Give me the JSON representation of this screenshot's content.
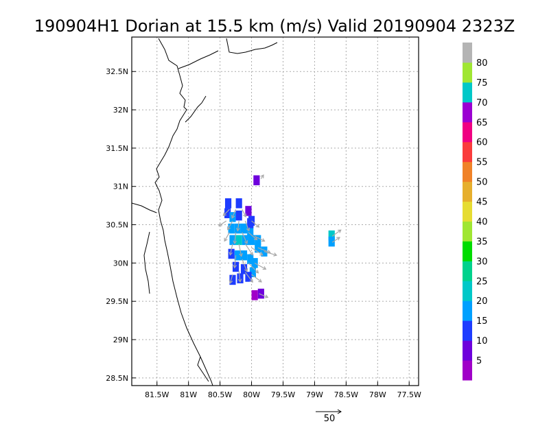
{
  "chart_data": {
    "type": "wind-vector-map",
    "title": "190904H1 Dorian at 15.5 km (m/s) Valid 20190904 2323Z",
    "x_ticks": [
      "81.5W",
      "81W",
      "80.5W",
      "80W",
      "79.5W",
      "79W",
      "78.5W",
      "78W",
      "77.5W"
    ],
    "x_tick_values": [
      -81.5,
      -81.0,
      -80.5,
      -80.0,
      -79.5,
      -79.0,
      -78.5,
      -78.0,
      -77.5
    ],
    "y_ticks": [
      "28.5N",
      "29N",
      "29.5N",
      "30N",
      "30.5N",
      "31N",
      "31.5N",
      "32N",
      "32.5N"
    ],
    "y_tick_values": [
      28.5,
      29.0,
      29.5,
      30.0,
      30.5,
      31.0,
      31.5,
      32.0,
      32.5
    ],
    "xlim": [
      -81.9,
      -77.35
    ],
    "ylim": [
      28.4,
      32.95
    ],
    "grid": true,
    "colorbar": {
      "labels": [
        "5",
        "10",
        "15",
        "20",
        "25",
        "30",
        "35",
        "40",
        "45",
        "50",
        "55",
        "60",
        "65",
        "70",
        "75",
        "80"
      ],
      "colors": [
        "#a000c8",
        "#6e00dc",
        "#1e3cff",
        "#00a0ff",
        "#00c8c8",
        "#00d28c",
        "#00dc00",
        "#a0e632",
        "#e6dc32",
        "#e6af2d",
        "#f08228",
        "#fa3c3c",
        "#f00082",
        "#9b00d2",
        "#00c8c8",
        "#a0e632",
        "#b4b4b4"
      ]
    },
    "reference_vector": {
      "label": "50"
    },
    "wind_cells": [
      {
        "lon": -80.37,
        "lat": 30.78,
        "speed": 15
      },
      {
        "lon": -80.2,
        "lat": 30.78,
        "speed": 15
      },
      {
        "lon": -80.38,
        "lat": 30.65,
        "speed": 15
      },
      {
        "lon": -80.3,
        "lat": 30.6,
        "speed": 20
      },
      {
        "lon": -80.2,
        "lat": 30.62,
        "speed": 15
      },
      {
        "lon": -80.05,
        "lat": 30.68,
        "speed": 10
      },
      {
        "lon": -80.0,
        "lat": 30.55,
        "speed": 15
      },
      {
        "lon": -80.32,
        "lat": 30.45,
        "speed": 20
      },
      {
        "lon": -80.22,
        "lat": 30.45,
        "speed": 20
      },
      {
        "lon": -80.12,
        "lat": 30.45,
        "speed": 20
      },
      {
        "lon": -80.02,
        "lat": 30.42,
        "speed": 20
      },
      {
        "lon": -80.3,
        "lat": 30.3,
        "speed": 20
      },
      {
        "lon": -80.2,
        "lat": 30.3,
        "speed": 25
      },
      {
        "lon": -80.1,
        "lat": 30.3,
        "speed": 20
      },
      {
        "lon": -80.0,
        "lat": 30.3,
        "speed": 20
      },
      {
        "lon": -79.9,
        "lat": 30.2,
        "speed": 20
      },
      {
        "lon": -79.8,
        "lat": 30.15,
        "speed": 20
      },
      {
        "lon": -80.32,
        "lat": 30.12,
        "speed": 15
      },
      {
        "lon": -80.22,
        "lat": 30.1,
        "speed": 20
      },
      {
        "lon": -80.12,
        "lat": 30.1,
        "speed": 20
      },
      {
        "lon": -80.02,
        "lat": 30.05,
        "speed": 20
      },
      {
        "lon": -79.95,
        "lat": 30.0,
        "speed": 20
      },
      {
        "lon": -80.25,
        "lat": 29.95,
        "speed": 15
      },
      {
        "lon": -80.12,
        "lat": 29.92,
        "speed": 15
      },
      {
        "lon": -79.98,
        "lat": 29.88,
        "speed": 20
      },
      {
        "lon": -80.18,
        "lat": 29.8,
        "speed": 15
      },
      {
        "lon": -80.3,
        "lat": 29.78,
        "speed": 15
      },
      {
        "lon": -80.05,
        "lat": 29.82,
        "speed": 15
      },
      {
        "lon": -80.02,
        "lat": 30.52,
        "speed": 15
      },
      {
        "lon": -79.9,
        "lat": 30.3,
        "speed": 20
      },
      {
        "lon": -79.85,
        "lat": 29.6,
        "speed": 10
      },
      {
        "lon": -79.95,
        "lat": 29.58,
        "speed": 5
      },
      {
        "lon": -79.92,
        "lat": 31.08,
        "speed": 10
      },
      {
        "lon": -78.73,
        "lat": 30.36,
        "speed": 25
      },
      {
        "lon": -78.73,
        "lat": 30.28,
        "speed": 20
      }
    ],
    "wind_vectors": [
      {
        "lon": -80.35,
        "lat": 30.7,
        "u": -10,
        "v": -10
      },
      {
        "lon": -80.25,
        "lat": 30.7,
        "u": -6,
        "v": -14
      },
      {
        "lon": -80.15,
        "lat": 30.7,
        "u": 6,
        "v": -12
      },
      {
        "lon": -80.4,
        "lat": 30.55,
        "u": -12,
        "v": -8
      },
      {
        "lon": -80.3,
        "lat": 30.55,
        "u": -8,
        "v": -14
      },
      {
        "lon": -80.2,
        "lat": 30.55,
        "u": -2,
        "v": -16
      },
      {
        "lon": -80.1,
        "lat": 30.55,
        "u": 6,
        "v": -16
      },
      {
        "lon": -80.0,
        "lat": 30.55,
        "u": 12,
        "v": -10
      },
      {
        "lon": -80.35,
        "lat": 30.4,
        "u": -8,
        "v": -14
      },
      {
        "lon": -80.25,
        "lat": 30.4,
        "u": -2,
        "v": -18
      },
      {
        "lon": -80.15,
        "lat": 30.4,
        "u": 8,
        "v": -18
      },
      {
        "lon": -80.05,
        "lat": 30.4,
        "u": 14,
        "v": -12
      },
      {
        "lon": -79.95,
        "lat": 30.35,
        "u": 16,
        "v": -8
      },
      {
        "lon": -80.3,
        "lat": 30.25,
        "u": -4,
        "v": -18
      },
      {
        "lon": -80.2,
        "lat": 30.25,
        "u": 4,
        "v": -20
      },
      {
        "lon": -80.1,
        "lat": 30.25,
        "u": 12,
        "v": -18
      },
      {
        "lon": -80.0,
        "lat": 30.2,
        "u": 18,
        "v": -12
      },
      {
        "lon": -79.9,
        "lat": 30.2,
        "u": 20,
        "v": -8
      },
      {
        "lon": -79.8,
        "lat": 30.15,
        "u": 20,
        "v": -6
      },
      {
        "lon": -80.25,
        "lat": 30.1,
        "u": -2,
        "v": -20
      },
      {
        "lon": -80.15,
        "lat": 30.05,
        "u": 8,
        "v": -20
      },
      {
        "lon": -80.05,
        "lat": 30.0,
        "u": 16,
        "v": -16
      },
      {
        "lon": -79.95,
        "lat": 30.0,
        "u": 18,
        "v": -10
      },
      {
        "lon": -80.2,
        "lat": 29.9,
        "u": 2,
        "v": -18
      },
      {
        "lon": -80.1,
        "lat": 29.88,
        "u": 12,
        "v": -16
      },
      {
        "lon": -80.0,
        "lat": 29.85,
        "u": 16,
        "v": -12
      },
      {
        "lon": -80.3,
        "lat": 29.85,
        "u": -4,
        "v": -14
      },
      {
        "lon": -79.88,
        "lat": 29.6,
        "u": 14,
        "v": -6
      },
      {
        "lon": -79.85,
        "lat": 31.1,
        "u": 4,
        "v": 6
      },
      {
        "lon": -78.72,
        "lat": 30.35,
        "u": 14,
        "v": 10
      },
      {
        "lon": -78.72,
        "lat": 30.27,
        "u": 12,
        "v": 8
      }
    ]
  }
}
